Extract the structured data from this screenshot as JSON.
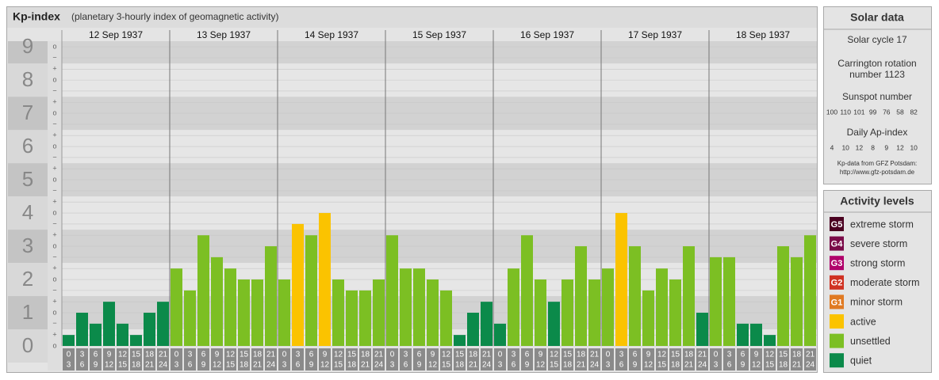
{
  "chart_data": {
    "type": "bar",
    "title": "Kp-index",
    "subtitle": "(planetary 3-hourly index of geomagnetic activity)",
    "hour_starts": [
      "0",
      "3",
      "6",
      "9",
      "12",
      "15",
      "18",
      "21"
    ],
    "hour_ends": [
      "3",
      "6",
      "9",
      "12",
      "15",
      "18",
      "21",
      "24"
    ],
    "days": [
      {
        "date": "12 Sep 1937",
        "values": [
          0.33,
          1,
          0.67,
          1.33,
          0.67,
          0.33,
          1,
          1.33
        ],
        "colors": [
          "#0b8a4a",
          "#0b8a4a",
          "#0b8a4a",
          "#0b8a4a",
          "#0b8a4a",
          "#0b8a4a",
          "#0b8a4a",
          "#0b8a4a"
        ]
      },
      {
        "date": "13 Sep 1937",
        "values": [
          2.33,
          1.67,
          3.33,
          2.67,
          2.33,
          2,
          2,
          3
        ],
        "colors": [
          "#7cbf23",
          "#7cbf23",
          "#7cbf23",
          "#7cbf23",
          "#7cbf23",
          "#7cbf23",
          "#7cbf23",
          "#7cbf23"
        ]
      },
      {
        "date": "14 Sep 1937",
        "values": [
          2,
          3.67,
          3.33,
          4,
          2,
          1.67,
          1.67,
          2
        ],
        "colors": [
          "#7cbf23",
          "#fbc300",
          "#7cbf23",
          "#fbc300",
          "#7cbf23",
          "#7cbf23",
          "#7cbf23",
          "#7cbf23"
        ]
      },
      {
        "date": "15 Sep 1937",
        "values": [
          3.33,
          2.33,
          2.33,
          2,
          1.67,
          0.33,
          1,
          1.33
        ],
        "colors": [
          "#7cbf23",
          "#7cbf23",
          "#7cbf23",
          "#7cbf23",
          "#7cbf23",
          "#0b8a4a",
          "#0b8a4a",
          "#0b8a4a"
        ]
      },
      {
        "date": "16 Sep 1937",
        "values": [
          0.67,
          2.33,
          3.33,
          2,
          1.33,
          2,
          3,
          2
        ],
        "colors": [
          "#0b8a4a",
          "#7cbf23",
          "#7cbf23",
          "#7cbf23",
          "#0b8a4a",
          "#7cbf23",
          "#7cbf23",
          "#7cbf23"
        ]
      },
      {
        "date": "17 Sep 1937",
        "values": [
          2.33,
          4,
          3,
          1.67,
          2.33,
          2,
          3,
          1
        ],
        "colors": [
          "#7cbf23",
          "#fbc300",
          "#7cbf23",
          "#7cbf23",
          "#7cbf23",
          "#7cbf23",
          "#7cbf23",
          "#0b8a4a"
        ]
      },
      {
        "date": "18 Sep 1937",
        "values": [
          2.67,
          2.67,
          0.67,
          0.67,
          0.33,
          3,
          2.67,
          3.33
        ],
        "colors": [
          "#7cbf23",
          "#7cbf23",
          "#0b8a4a",
          "#0b8a4a",
          "#0b8a4a",
          "#7cbf23",
          "#7cbf23",
          "#7cbf23"
        ]
      }
    ],
    "ylim": [
      0,
      9.17
    ],
    "yticks": [
      0,
      1,
      2,
      3,
      4,
      5,
      6,
      7,
      8,
      9
    ],
    "minor_ticks": [
      {
        "value": 0,
        "label": "o"
      },
      {
        "value": 0.33,
        "label": "+"
      },
      {
        "value": 0.67,
        "label": "−"
      },
      {
        "value": 1,
        "label": "o"
      },
      {
        "value": 1.33,
        "label": "+"
      },
      {
        "value": 1.67,
        "label": "−"
      },
      {
        "value": 2,
        "label": "o"
      },
      {
        "value": 2.33,
        "label": "+"
      },
      {
        "value": 2.67,
        "label": "−"
      },
      {
        "value": 3,
        "label": "o"
      },
      {
        "value": 3.33,
        "label": "+"
      },
      {
        "value": 3.67,
        "label": "−"
      },
      {
        "value": 4,
        "label": "o"
      },
      {
        "value": 4.33,
        "label": "+"
      },
      {
        "value": 4.67,
        "label": "−"
      },
      {
        "value": 5,
        "label": "o"
      },
      {
        "value": 5.33,
        "label": "+"
      },
      {
        "value": 5.67,
        "label": "−"
      },
      {
        "value": 6,
        "label": "o"
      },
      {
        "value": 6.33,
        "label": "+"
      },
      {
        "value": 6.67,
        "label": "−"
      },
      {
        "value": 7,
        "label": "o"
      },
      {
        "value": 7.33,
        "label": "+"
      },
      {
        "value": 7.67,
        "label": "−"
      },
      {
        "value": 8,
        "label": "o"
      },
      {
        "value": 8.33,
        "label": "+"
      },
      {
        "value": 8.67,
        "label": "−"
      },
      {
        "value": 9,
        "label": "o"
      }
    ],
    "grid": true
  },
  "solar_data": {
    "title": "Solar data",
    "solar_cycle": "Solar cycle 17",
    "carrington": [
      "Carrington rotation",
      "number 1123"
    ],
    "sunspot_title": "Sunspot number",
    "sunspot_numbers": [
      100,
      110,
      101,
      99,
      76,
      58,
      82
    ],
    "ap_title": "Daily Ap-index",
    "ap_index": [
      4,
      10,
      12,
      8,
      9,
      12,
      10
    ],
    "source": [
      "Kp-data from GFZ Potsdam:",
      "http://www.gfz-potsdam.de"
    ]
  },
  "activity_levels": {
    "title": "Activity levels",
    "levels": [
      {
        "code": "G5",
        "name": "extreme storm",
        "color": "#4a0020"
      },
      {
        "code": "G4",
        "name": "severe storm",
        "color": "#7a0a48"
      },
      {
        "code": "G3",
        "name": "strong storm",
        "color": "#b0006a"
      },
      {
        "code": "G2",
        "name": "moderate storm",
        "color": "#d03222"
      },
      {
        "code": "G1",
        "name": "minor storm",
        "color": "#e07a22"
      },
      {
        "name": "active",
        "color": "#fbc300"
      },
      {
        "name": "unsettled",
        "color": "#7cbf23"
      },
      {
        "name": "quiet",
        "color": "#0b8a4a"
      }
    ]
  }
}
